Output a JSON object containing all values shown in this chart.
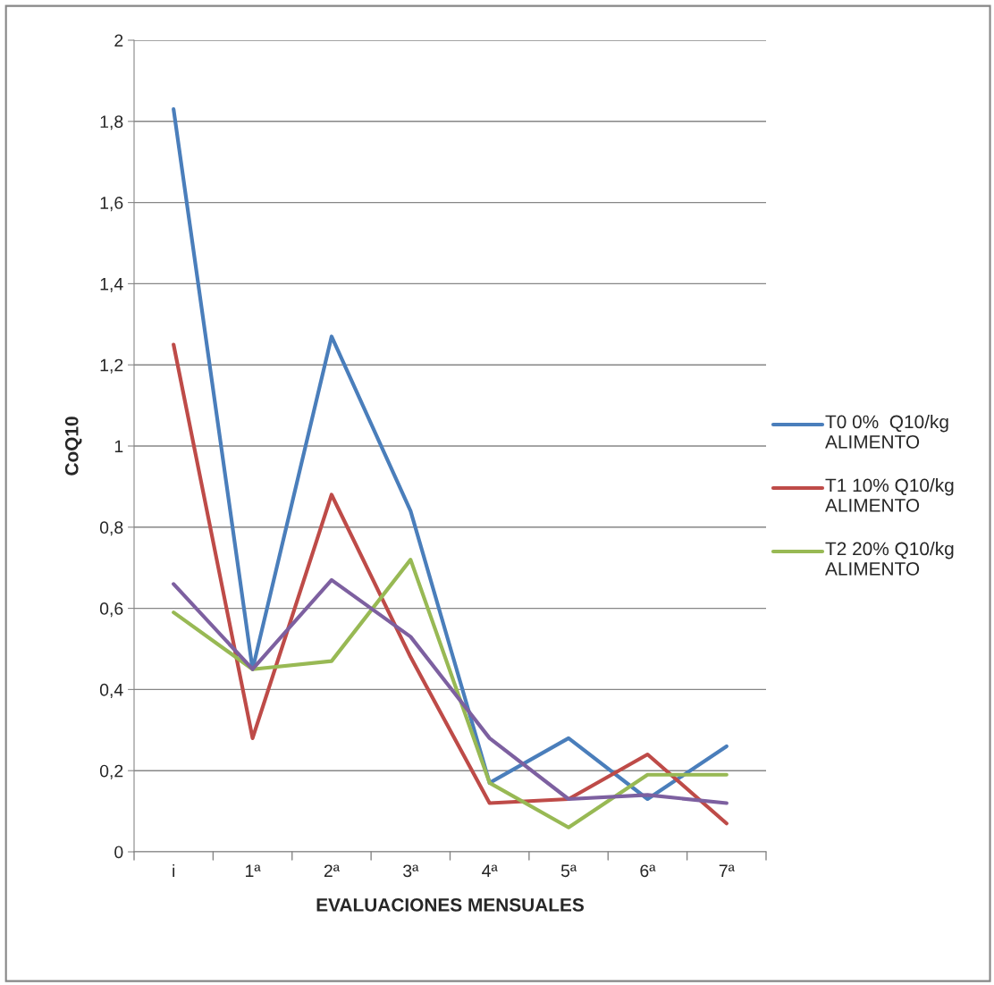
{
  "chart_data": {
    "type": "line",
    "xlabel": "EVALUACIONES MENSUALES",
    "ylabel": "CoQ10",
    "categories": [
      "i",
      "1ª",
      "2ª",
      "3ª",
      "4ª",
      "5ª",
      "6ª",
      "7ª"
    ],
    "series": [
      {
        "name": "T0 0%  Q10/kg ALIMENTO",
        "color": "#4a7ebb",
        "values": [
          1.83,
          0.45,
          1.27,
          0.84,
          0.17,
          0.28,
          0.13,
          0.26
        ]
      },
      {
        "name": "T1 10% Q10/kg ALIMENTO",
        "color": "#be4b48",
        "values": [
          1.25,
          0.28,
          0.88,
          0.48,
          0.12,
          0.13,
          0.24,
          0.07
        ]
      },
      {
        "name": "T2 20% Q10/kg ALIMENTO",
        "color": "#98b954",
        "values": [
          0.59,
          0.45,
          0.47,
          0.72,
          0.17,
          0.06,
          0.19,
          0.19
        ]
      },
      {
        "color": "#7d60a0",
        "values": [
          0.66,
          0.45,
          0.67,
          0.53,
          0.28,
          0.13,
          0.14,
          0.12
        ]
      }
    ],
    "ylim": [
      0,
      2
    ],
    "yticks": [
      0,
      {
        "value": 0.2,
        "label": "0,2"
      },
      {
        "value": 0.4,
        "label": "0,4"
      },
      {
        "value": 0.6,
        "label": "0,6"
      },
      {
        "value": 0.8,
        "label": "0,8"
      },
      1,
      {
        "value": 1.2,
        "label": "1,2"
      },
      {
        "value": 1.4,
        "label": "1,4"
      },
      {
        "value": 1.6,
        "label": "1,6"
      },
      {
        "value": 1.8,
        "label": "1,8"
      },
      2
    ],
    "grid": "y",
    "legend": "right",
    "marker": "none",
    "line_style": "solid"
  }
}
